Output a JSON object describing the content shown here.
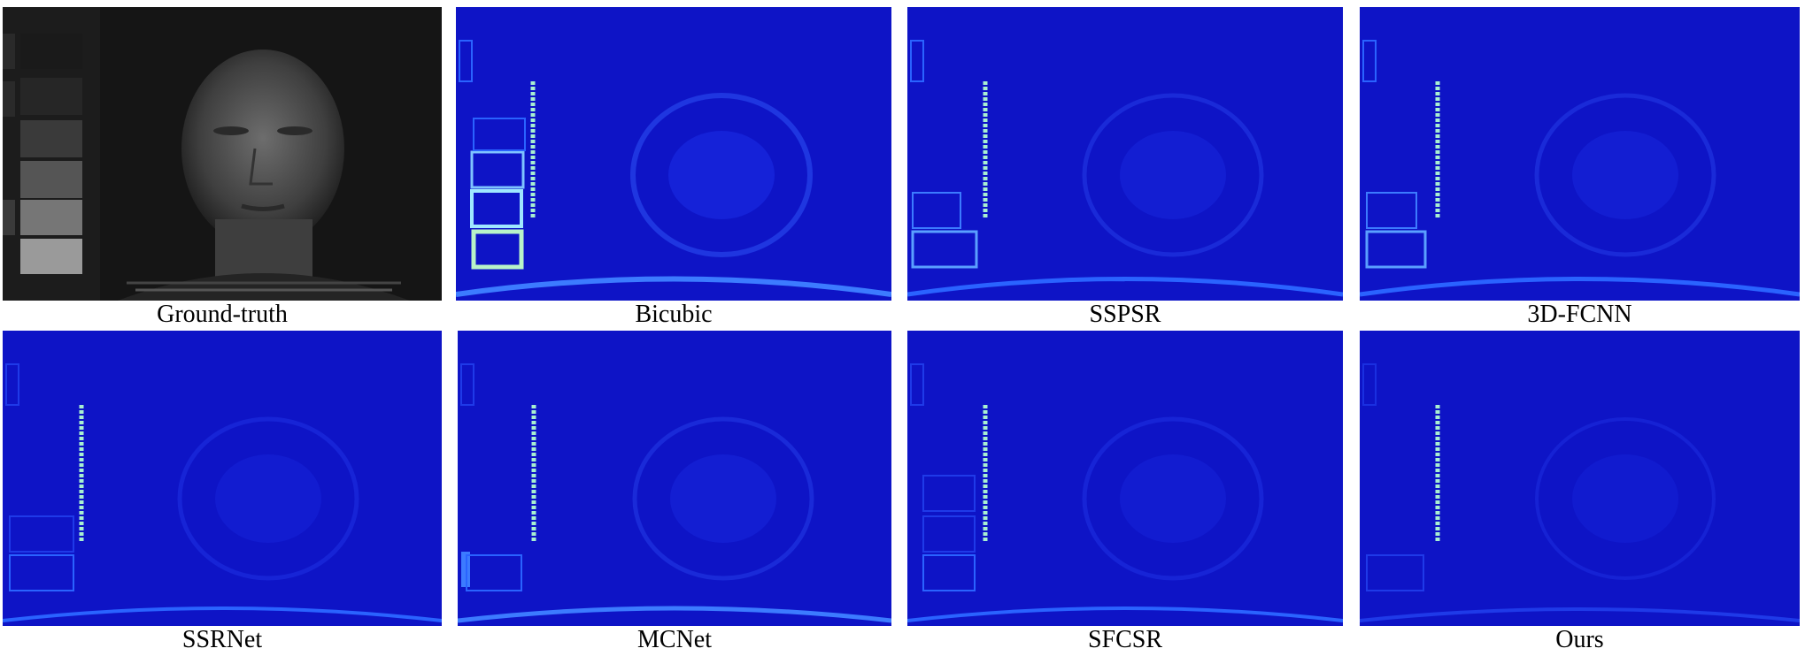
{
  "panels": [
    {
      "caption": "Ground-truth",
      "kind": "grayscale"
    },
    {
      "caption": "Bicubic",
      "kind": "error-map",
      "error_level": "high"
    },
    {
      "caption": "SSPSR",
      "kind": "error-map",
      "error_level": "medium"
    },
    {
      "caption": "3D-FCNN",
      "kind": "error-map",
      "error_level": "medium"
    },
    {
      "caption": "SSRNet",
      "kind": "error-map",
      "error_level": "low"
    },
    {
      "caption": "MCNet",
      "kind": "error-map",
      "error_level": "medium"
    },
    {
      "caption": "SFCSR",
      "kind": "error-map",
      "error_level": "low"
    },
    {
      "caption": "Ours",
      "kind": "error-map",
      "error_level": "lowest"
    }
  ],
  "colors": {
    "error_background": "#0e14c6",
    "error_highlight": "#a8f0d0",
    "error_edge": "#2a63ff"
  }
}
